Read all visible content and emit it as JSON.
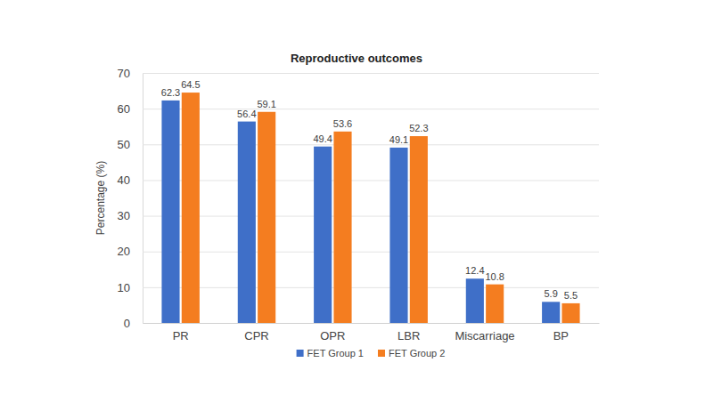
{
  "chart_data": {
    "type": "bar",
    "title": "Reproductive outcomes",
    "y_label": "Percentage (%)",
    "categories": [
      "PR",
      "CPR",
      "OPR",
      "LBR",
      "Miscarriage",
      "BP"
    ],
    "series": [
      {
        "name": "FET Group 1",
        "color": "#3f6fc8",
        "values": [
          62.3,
          56.4,
          49.4,
          49.1,
          12.4,
          5.9
        ]
      },
      {
        "name": "FET Group 2",
        "color": "#f47d20",
        "values": [
          64.5,
          59.1,
          53.6,
          52.3,
          10.8,
          5.5
        ]
      }
    ],
    "ylim": [
      0,
      70
    ],
    "yticks": [
      0,
      10,
      20,
      30,
      40,
      50,
      60,
      70
    ],
    "grid": true,
    "legend": "bottom",
    "data_labels": true
  }
}
